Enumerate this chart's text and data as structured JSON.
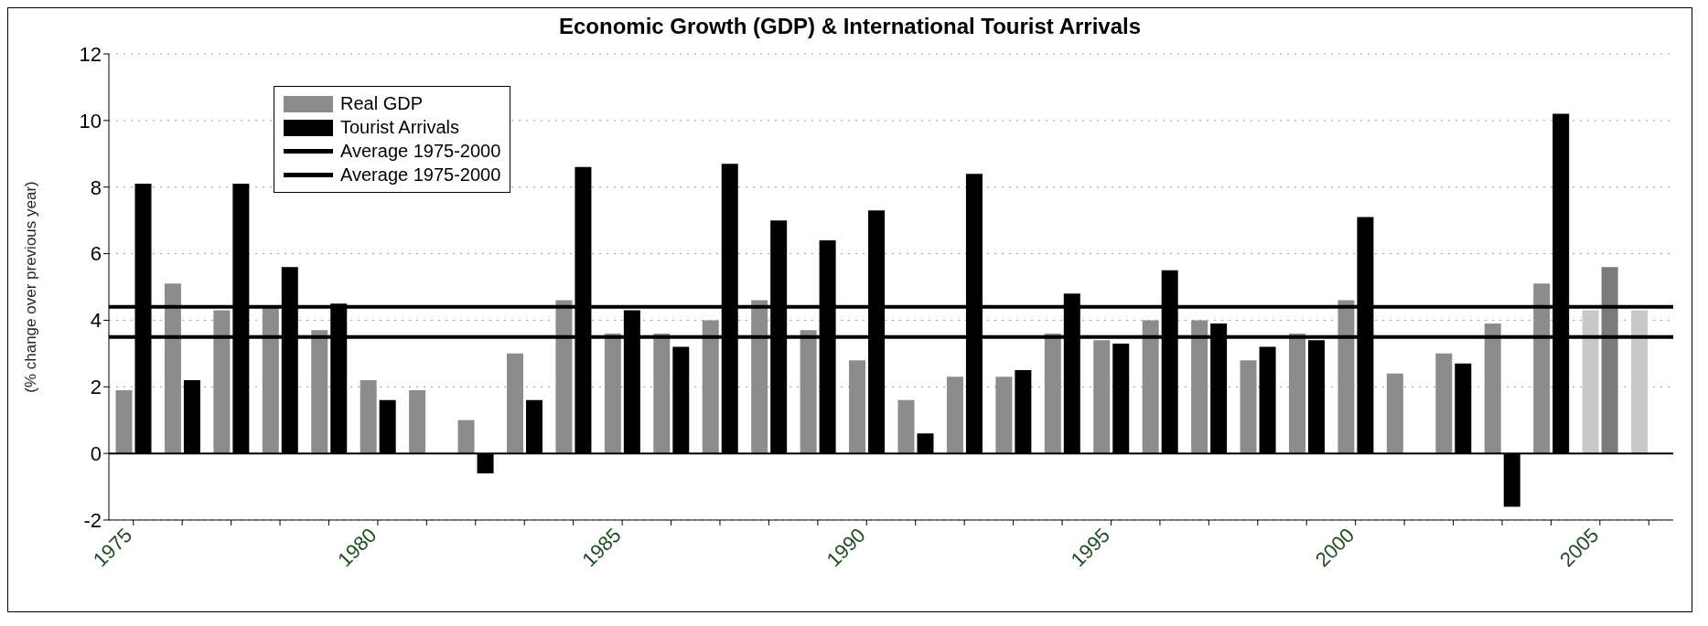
{
  "chart_data": {
    "type": "bar",
    "title": "Economic Growth (GDP) & International Tourist Arrivals",
    "ylabel": "(% change over previous year)",
    "categories": [
      "1975",
      null,
      null,
      null,
      null,
      "1980",
      null,
      null,
      null,
      null,
      "1985",
      null,
      null,
      null,
      null,
      "1990",
      null,
      null,
      null,
      null,
      "1995",
      null,
      null,
      null,
      null,
      "2000",
      null,
      null,
      null,
      null,
      "2005",
      null
    ],
    "series": [
      {
        "name": "Real GDP",
        "color": "#8c8c8c",
        "colors": [
          "#8c8c8c",
          "#8c8c8c",
          "#8c8c8c",
          "#8c8c8c",
          "#8c8c8c",
          "#8c8c8c",
          "#8c8c8c",
          "#8c8c8c",
          "#8c8c8c",
          "#8c8c8c",
          "#8c8c8c",
          "#8c8c8c",
          "#8c8c8c",
          "#8c8c8c",
          "#8c8c8c",
          "#8c8c8c",
          "#8c8c8c",
          "#8c8c8c",
          "#8c8c8c",
          "#8c8c8c",
          "#8c8c8c",
          "#8c8c8c",
          "#8c8c8c",
          "#8c8c8c",
          "#8c8c8c",
          "#8c8c8c",
          "#8c8c8c",
          "#8c8c8c",
          "#8c8c8c",
          "#8c8c8c",
          "#c8c8c8",
          "#c8c8c8"
        ],
        "values": [
          1.9,
          5.1,
          4.3,
          4.4,
          3.7,
          2.2,
          1.9,
          1.0,
          3.0,
          4.6,
          3.6,
          3.6,
          4.0,
          4.6,
          3.7,
          2.8,
          1.6,
          2.3,
          2.3,
          3.6,
          3.4,
          4.0,
          4.0,
          2.8,
          3.6,
          4.6,
          2.4,
          3.0,
          3.9,
          5.1,
          4.3,
          4.3
        ]
      },
      {
        "name": "Tourist Arrivals",
        "color": "#000000",
        "colors": [
          "#000000",
          "#000000",
          "#000000",
          "#000000",
          "#000000",
          "#000000",
          "#000000",
          "#000000",
          "#000000",
          "#000000",
          "#000000",
          "#000000",
          "#000000",
          "#000000",
          "#000000",
          "#000000",
          "#000000",
          "#000000",
          "#000000",
          "#000000",
          "#000000",
          "#000000",
          "#000000",
          "#000000",
          "#000000",
          "#000000",
          "#000000",
          "#000000",
          "#000000",
          "#000000",
          "#7a7a7a",
          "#7a7a7a"
        ],
        "values": [
          8.1,
          2.2,
          8.1,
          5.6,
          4.5,
          1.6,
          0,
          -0.6,
          1.6,
          8.6,
          4.3,
          3.2,
          8.7,
          7.0,
          6.4,
          7.3,
          0.6,
          8.4,
          2.5,
          4.8,
          3.3,
          5.5,
          3.9,
          3.2,
          3.4,
          7.1,
          null,
          2.7,
          -1.6,
          10.2,
          5.6,
          null
        ]
      }
    ],
    "ref_lines": [
      {
        "axis": "y",
        "value": 4.4,
        "label": "Average 1975-2000",
        "color": "#000000"
      },
      {
        "axis": "y",
        "value": 3.5,
        "label": "Average 1975-2000",
        "color": "#000000"
      }
    ],
    "ylim": [
      -2,
      12
    ],
    "yticks": [
      -2,
      0,
      2,
      4,
      6,
      8,
      10,
      12
    ],
    "grid": "y",
    "legend": "top left"
  }
}
